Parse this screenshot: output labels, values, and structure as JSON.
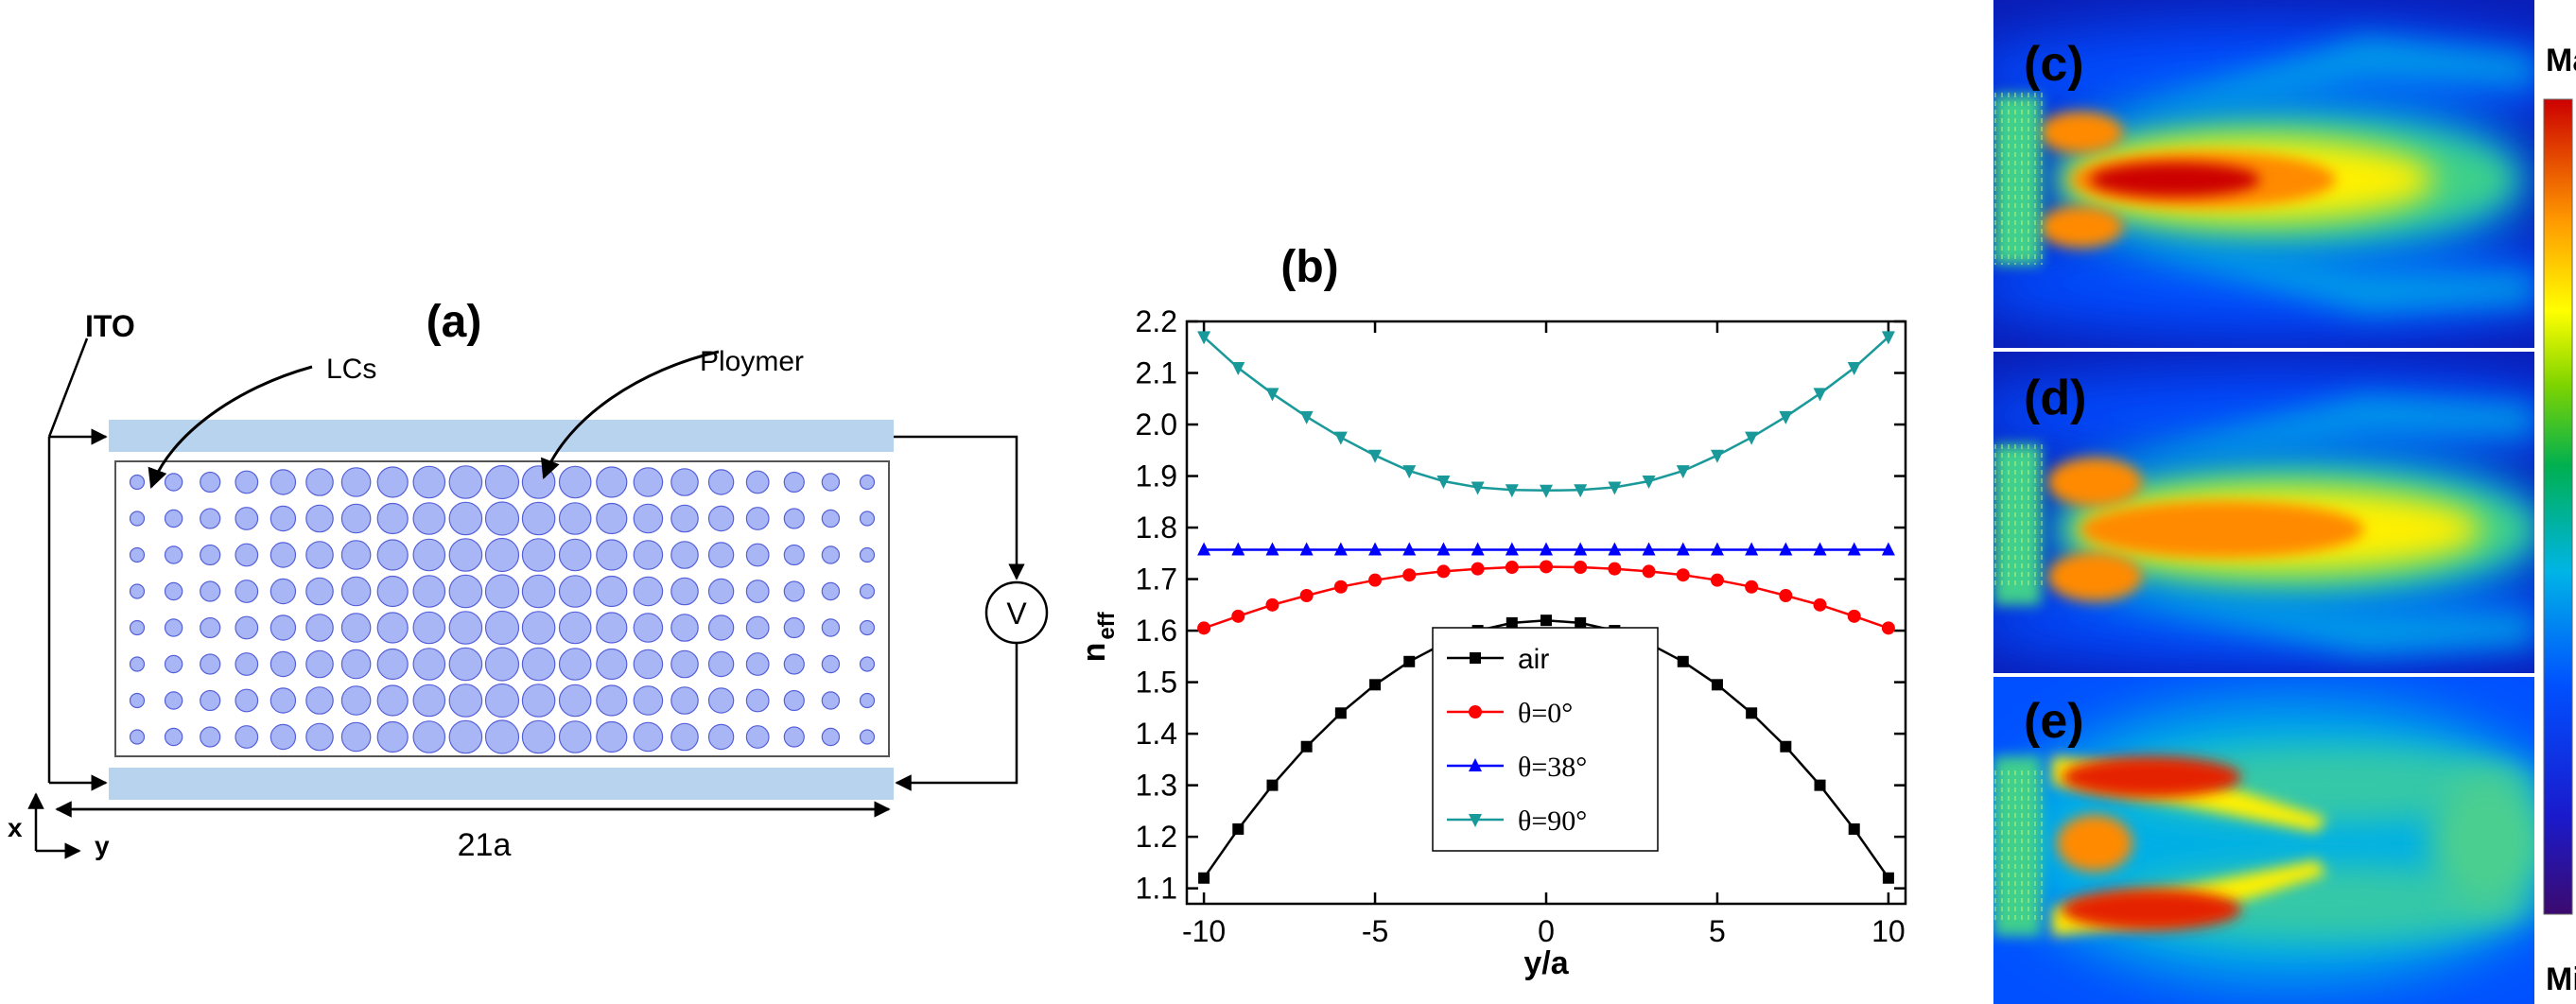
{
  "panel_a": {
    "label": "(a)",
    "ito_label": "ITO",
    "lcs_label": "LCs",
    "polymer_label": "Ploymer",
    "voltage_label": "V",
    "width_label": "21a",
    "axis_x_label": "x",
    "axis_y_label": "y",
    "grid_columns": 21,
    "grid_rows": 8
  },
  "chart_data": {
    "type": "line",
    "panel_label": "(b)",
    "xlabel": "y/a",
    "ylabel_main": "n",
    "ylabel_sub": "eff",
    "xlim": [
      -10.5,
      10.5
    ],
    "ylim": [
      1.07,
      2.2
    ],
    "xticks": [
      -10,
      -5,
      0,
      5,
      10
    ],
    "xtick_labels": [
      "-10",
      "-5",
      "0",
      "5",
      "10"
    ],
    "yticks": [
      1.1,
      1.2,
      1.3,
      1.4,
      1.5,
      1.6,
      1.7,
      1.8,
      1.9,
      2.0,
      2.1,
      2.2
    ],
    "ytick_labels": [
      "1.1",
      "1.2",
      "1.3",
      "1.4",
      "1.5",
      "1.6",
      "1.7",
      "1.8",
      "1.9",
      "2.0",
      "2.1",
      "2.2"
    ],
    "x": [
      -10,
      -9,
      -8,
      -7,
      -6,
      -5,
      -4,
      -3,
      -2,
      -1,
      0,
      1,
      2,
      3,
      4,
      5,
      6,
      7,
      8,
      9,
      10
    ],
    "series": [
      {
        "name": "air",
        "color": "#000000",
        "marker": "square",
        "values": [
          1.12,
          1.215,
          1.3,
          1.375,
          1.44,
          1.495,
          1.54,
          1.575,
          1.6,
          1.615,
          1.62,
          1.615,
          1.6,
          1.575,
          1.54,
          1.495,
          1.44,
          1.375,
          1.3,
          1.215,
          1.12
        ]
      },
      {
        "name": "θ=0°",
        "color": "#ff0000",
        "marker": "circle",
        "values": [
          1.605,
          1.628,
          1.65,
          1.668,
          1.685,
          1.698,
          1.708,
          1.715,
          1.72,
          1.723,
          1.724,
          1.723,
          1.72,
          1.715,
          1.708,
          1.698,
          1.685,
          1.668,
          1.65,
          1.628,
          1.605
        ]
      },
      {
        "name": "θ=38°",
        "color": "#0000ff",
        "marker": "triangle-up",
        "values": [
          1.757,
          1.757,
          1.757,
          1.757,
          1.757,
          1.757,
          1.757,
          1.757,
          1.757,
          1.757,
          1.757,
          1.757,
          1.757,
          1.757,
          1.757,
          1.757,
          1.757,
          1.757,
          1.757,
          1.757,
          1.757
        ]
      },
      {
        "name": "θ=90°",
        "color": "#199999",
        "marker": "triangle-down",
        "values": [
          2.17,
          2.11,
          2.06,
          2.015,
          1.975,
          1.94,
          1.91,
          1.89,
          1.878,
          1.873,
          1.872,
          1.873,
          1.878,
          1.89,
          1.91,
          1.94,
          1.975,
          2.015,
          2.06,
          2.11,
          2.17
        ]
      }
    ],
    "legend_position": "bottom-center"
  },
  "field_maps": {
    "panels": [
      {
        "label": "(c)",
        "pattern": "focused"
      },
      {
        "label": "(d)",
        "pattern": "focused-wide"
      },
      {
        "label": "(e)",
        "pattern": "split"
      }
    ],
    "colorbar": {
      "max_label": "Max",
      "min_label": "Min"
    }
  }
}
